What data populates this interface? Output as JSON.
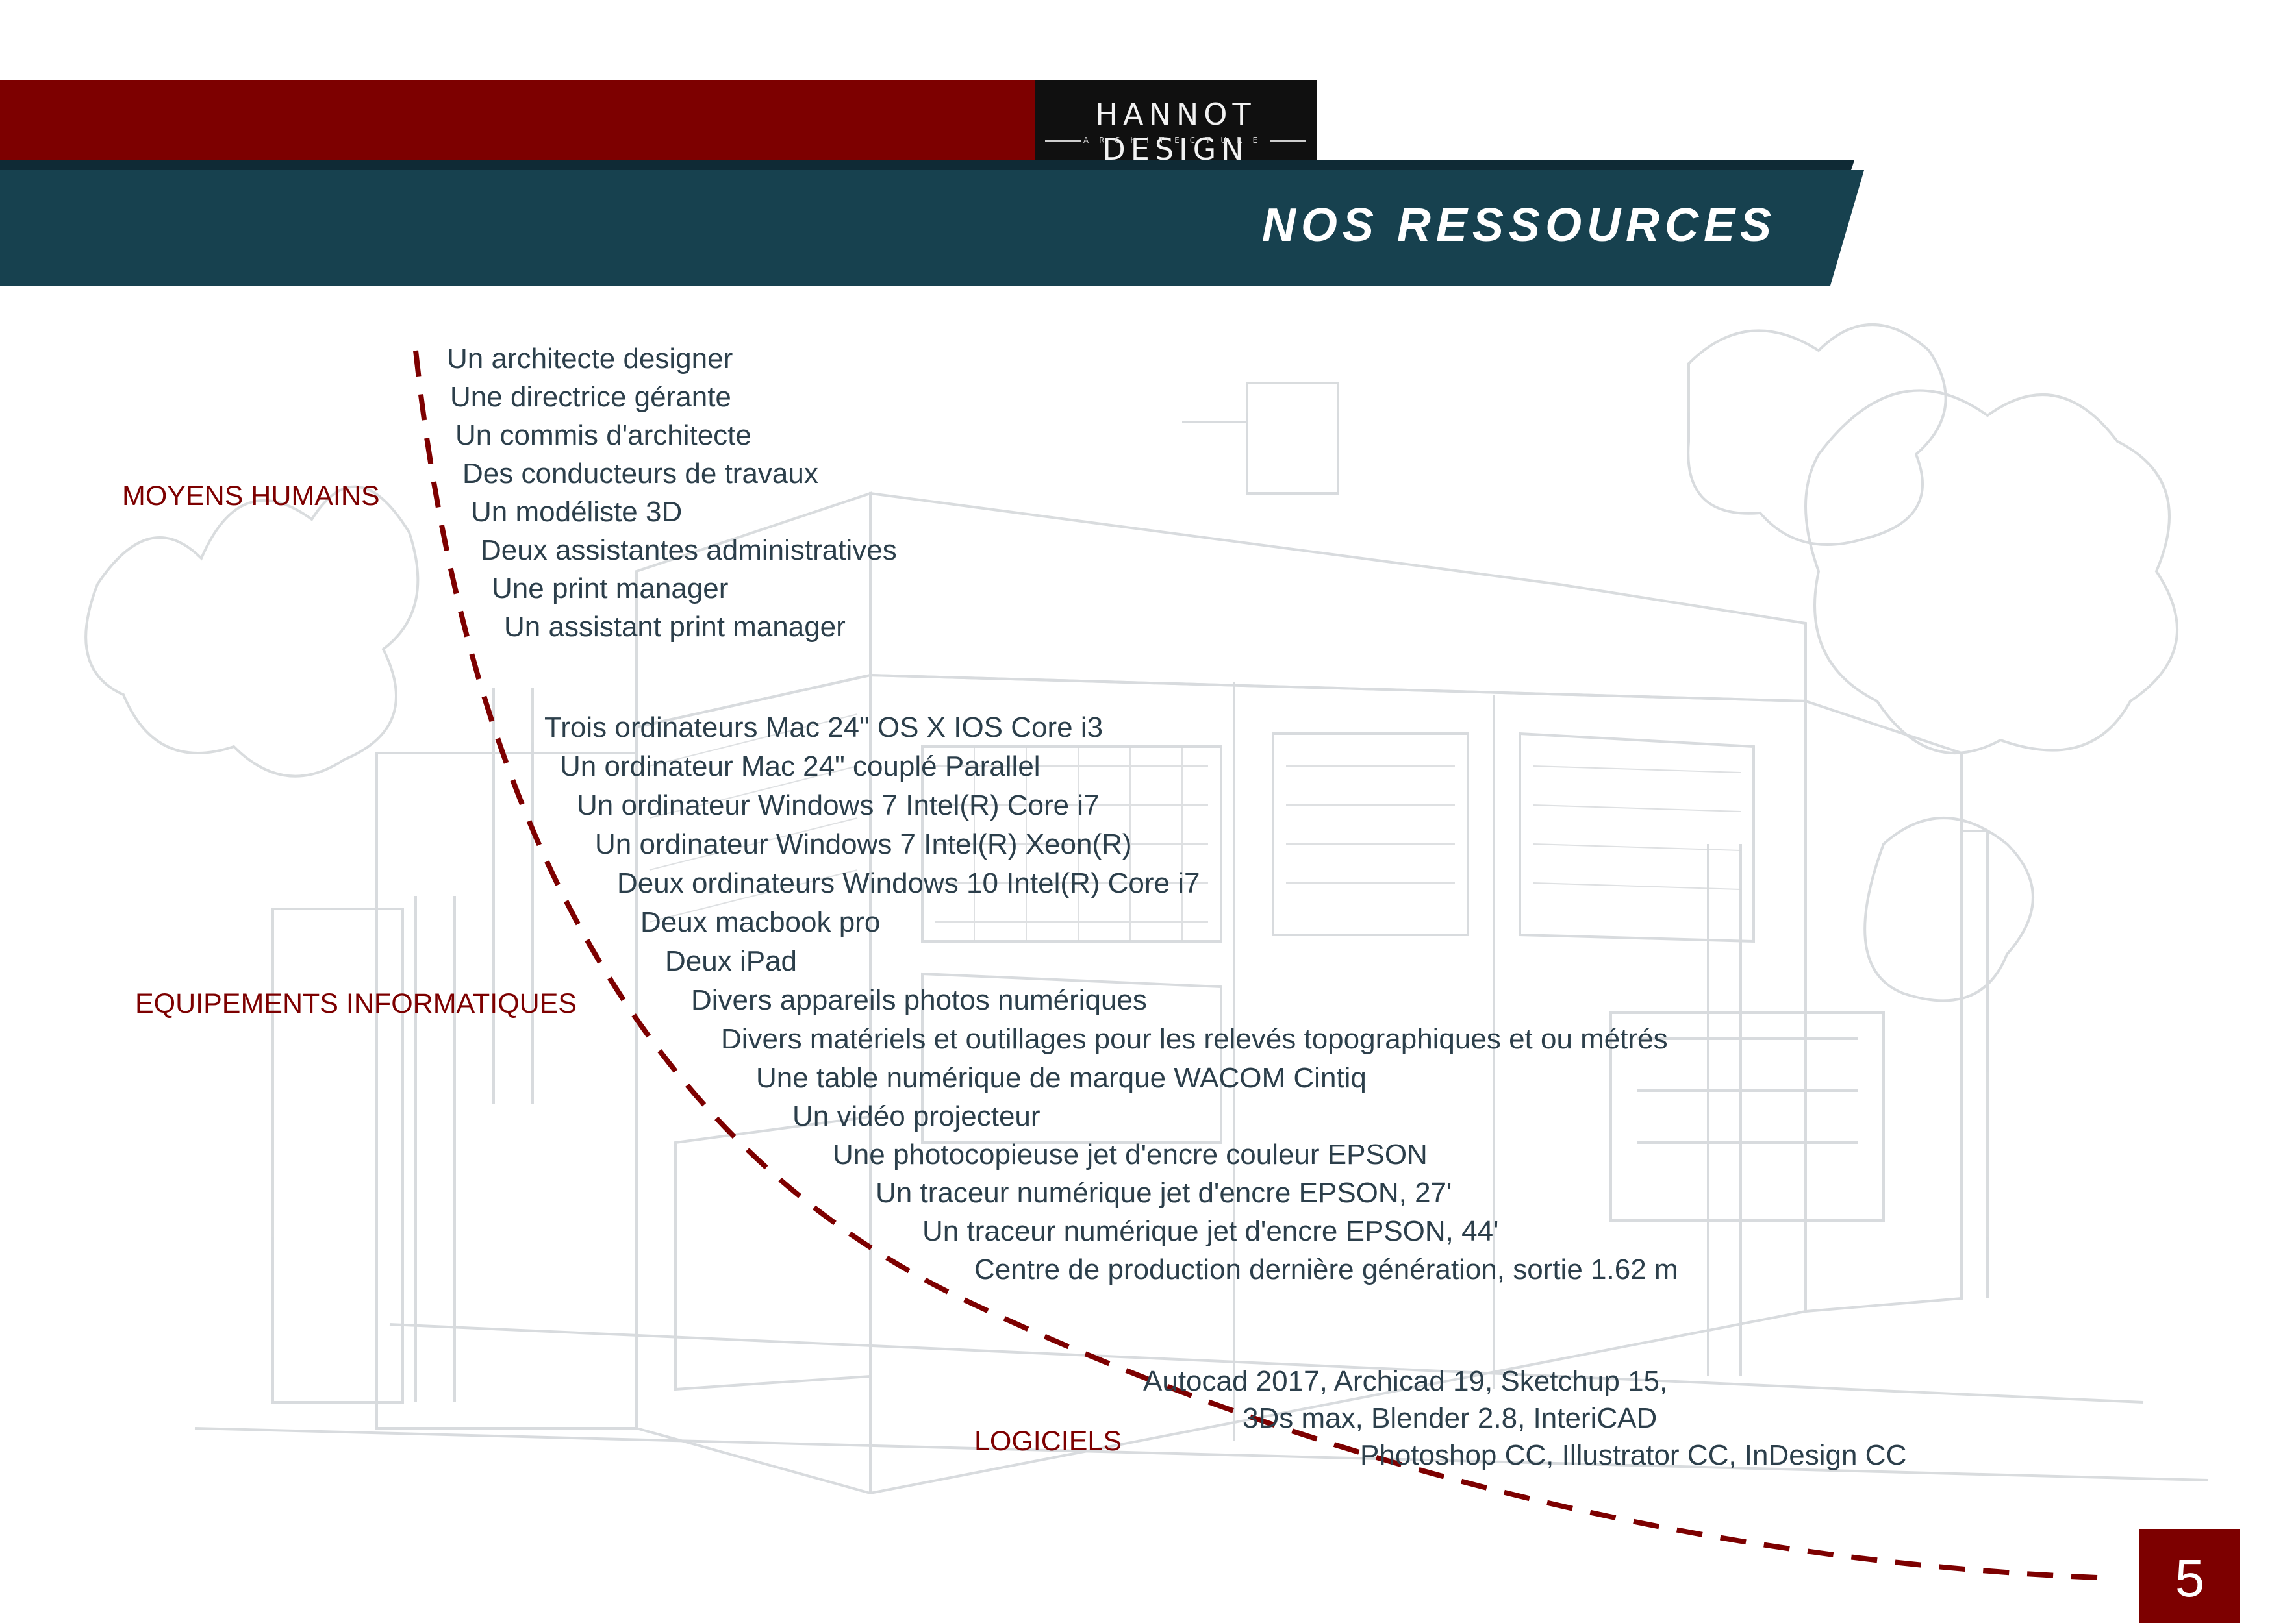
{
  "brand": {
    "name": "HANNOT DESIGN",
    "subtitle": "ARCHITECTURE"
  },
  "title": "NOS RESSOURCES",
  "colors": {
    "accent_red": "#7d0000",
    "band_teal": "#17414f",
    "text_dark": "#2c3f4b"
  },
  "categories": {
    "human": "MOYENS HUMAINS",
    "it": "EQUIPEMENTS INFORMATIQUES",
    "software": "LOGICIELS"
  },
  "human_resources": [
    "Un architecte designer",
    "Une directrice gérante",
    "Un commis d'architecte",
    "Des conducteurs de travaux",
    "Un modéliste 3D",
    "Deux assistantes administratives",
    "Une print manager",
    "Un assistant print manager"
  ],
  "it_equipment": [
    "Trois ordinateurs Mac 24\" OS X IOS Core i3",
    "Un ordinateur Mac 24\" couplé Parallel",
    "Un ordinateur Windows 7 Intel(R) Core i7",
    "Un ordinateur Windows 7 Intel(R)  Xeon(R)",
    "Deux ordinateurs Windows 10 Intel(R) Core i7",
    "Deux macbook pro",
    "Deux iPad",
    "Divers appareils photos numériques",
    "Divers matériels et outillages pour les relevés topographiques et ou métrés",
    "Une table numérique de marque WACOM Cintiq",
    "Un vidéo projecteur",
    "Une photocopieuse jet d'encre couleur EPSON",
    "Un traceur numérique jet d'encre EPSON, 27'",
    "Un traceur numérique jet d'encre EPSON, 44'",
    "Centre de production dernière génération, sortie 1.62 m"
  ],
  "software": [
    "Autocad 2017, Archicad 19, Sketchup 15,",
    "3Ds max, Blender 2.8, InteriCAD",
    "Photoshop CC, Illustrator CC, InDesign CC"
  ],
  "page_number": "5"
}
